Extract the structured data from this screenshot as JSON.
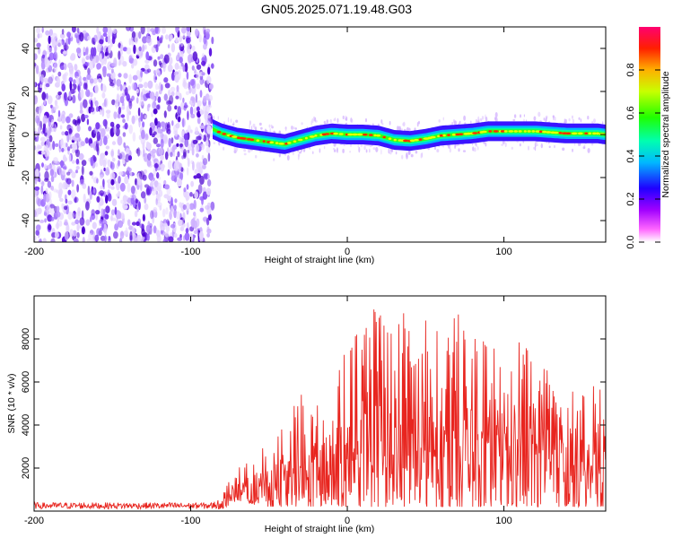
{
  "title": "GN05.2025.071.19.48.G03",
  "chart_data": [
    {
      "id": "spectrogram",
      "type": "heatmap",
      "xlabel": "Height of straight line (km)",
      "ylabel": "Frequency (Hz)",
      "xlim": [
        -200,
        165
      ],
      "ylim": [
        -50,
        50
      ],
      "x_ticks": [
        -200,
        -100,
        0,
        100
      ],
      "y_ticks": [
        -40,
        -20,
        0,
        20,
        40
      ],
      "noise_region_x": [
        -200,
        -86
      ],
      "signal_ridge": {
        "x": [
          -86,
          -80,
          -70,
          -60,
          -50,
          -40,
          -30,
          -20,
          -10,
          0,
          10,
          20,
          30,
          40,
          50,
          60,
          70,
          80,
          90,
          100,
          110,
          120,
          130,
          140,
          150,
          160,
          165
        ],
        "frequency": [
          2.5,
          0.5,
          -1.5,
          -2.5,
          -3.5,
          -4.5,
          -2.5,
          -0.5,
          0.5,
          0,
          0,
          -0.5,
          -2.5,
          -3,
          -2,
          -0.5,
          0,
          0.5,
          1.5,
          1.5,
          1.5,
          1.5,
          1,
          0.5,
          0.5,
          0.5,
          0
        ]
      },
      "colorbar": {
        "label": "Normalized spectral amplitude",
        "range": [
          0,
          1
        ],
        "ticks": [
          0.0,
          0.2,
          0.4,
          0.6,
          0.8
        ]
      }
    },
    {
      "id": "snr",
      "type": "line",
      "xlabel": "Height of straight line (km)",
      "ylabel": "SNR (10 * v/v)",
      "xlim": [
        -200,
        165
      ],
      "ylim": [
        0,
        10000
      ],
      "x_ticks": [
        -200,
        -100,
        0,
        100
      ],
      "y_ticks": [
        2000,
        4000,
        6000,
        8000
      ],
      "color": "#e8251f",
      "envelope": {
        "x": [
          -200,
          -150,
          -100,
          -86,
          -80,
          -75,
          -70,
          -60,
          -50,
          -40,
          -30,
          -20,
          -10,
          0,
          10,
          20,
          30,
          40,
          50,
          60,
          70,
          80,
          90,
          100,
          110,
          120,
          130,
          140,
          150,
          160,
          165
        ],
        "min": [
          100,
          100,
          100,
          100,
          100,
          300,
          500,
          300,
          200,
          200,
          200,
          200,
          200,
          200,
          200,
          200,
          200,
          200,
          200,
          200,
          200,
          200,
          200,
          200,
          200,
          200,
          200,
          200,
          200,
          200,
          200
        ],
        "max": [
          400,
          400,
          400,
          400,
          800,
          1500,
          2000,
          2400,
          3300,
          4000,
          5500,
          4800,
          6200,
          7600,
          8900,
          9800,
          8600,
          9800,
          9500,
          8000,
          9200,
          8800,
          7800,
          7200,
          8200,
          7300,
          6600,
          6000,
          5500,
          6500,
          4000
        ]
      }
    }
  ]
}
